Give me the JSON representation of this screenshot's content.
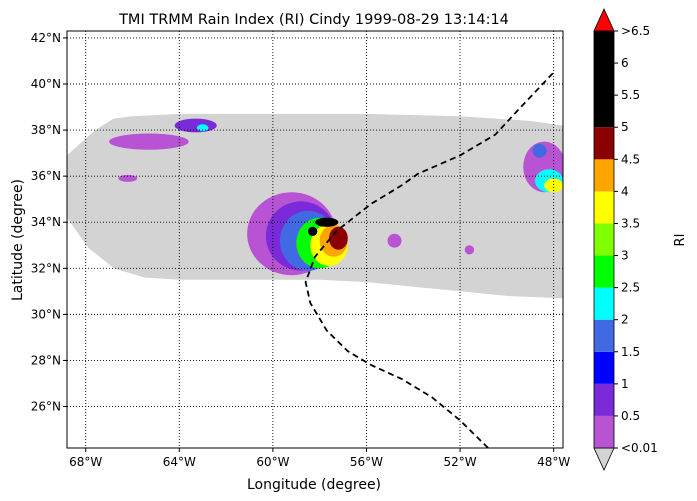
{
  "chart_data": {
    "type": "heatmap",
    "title": "TMI TRMM Rain Index (RI) Cindy 1999-08-29 13:14:14",
    "xlabel": "Longitude (degree)",
    "ylabel": "Latitude (degree)",
    "xlim": [
      -68.8,
      -47.6
    ],
    "ylim": [
      24.2,
      42.3
    ],
    "x_ticks": [
      {
        "value": -68,
        "label": "68°W"
      },
      {
        "value": -64,
        "label": "64°W"
      },
      {
        "value": -60,
        "label": "60°W"
      },
      {
        "value": -56,
        "label": "56°W"
      },
      {
        "value": -52,
        "label": "52°W"
      },
      {
        "value": -48,
        "label": "48°W"
      }
    ],
    "y_ticks": [
      {
        "value": 26,
        "label": "26°N"
      },
      {
        "value": 28,
        "label": "28°N"
      },
      {
        "value": 30,
        "label": "30°N"
      },
      {
        "value": 32,
        "label": "32°N"
      },
      {
        "value": 34,
        "label": "34°N"
      },
      {
        "value": 36,
        "label": "36°N"
      },
      {
        "value": 38,
        "label": "38°N"
      },
      {
        "value": 40,
        "label": "40°N"
      },
      {
        "value": 42,
        "label": "42°N"
      }
    ],
    "grid": "dotted",
    "swath_color": "#d3d3d3",
    "swath_outline": [
      [
        -68.8,
        36.9
      ],
      [
        -67.6,
        38.0
      ],
      [
        -66.8,
        38.5
      ],
      [
        -66.0,
        38.6
      ],
      [
        -64.0,
        38.7
      ],
      [
        -60.0,
        38.7
      ],
      [
        -56.0,
        38.7
      ],
      [
        -52.0,
        38.6
      ],
      [
        -49.0,
        38.4
      ],
      [
        -47.6,
        38.2
      ],
      [
        -47.6,
        30.7
      ],
      [
        -50.0,
        30.8
      ],
      [
        -52.0,
        31.0
      ],
      [
        -54.0,
        31.2
      ],
      [
        -56.0,
        31.4
      ],
      [
        -58.0,
        31.5
      ],
      [
        -60.0,
        31.5
      ],
      [
        -62.0,
        31.5
      ],
      [
        -64.0,
        31.5
      ],
      [
        -65.5,
        31.6
      ],
      [
        -66.8,
        32.0
      ],
      [
        -67.9,
        32.9
      ],
      [
        -68.8,
        34.2
      ]
    ],
    "track": [
      [
        -50.8,
        24.2
      ],
      [
        -52.0,
        25.4
      ],
      [
        -53.2,
        26.4
      ],
      [
        -54.5,
        27.2
      ],
      [
        -55.8,
        27.8
      ],
      [
        -56.8,
        28.4
      ],
      [
        -57.7,
        29.3
      ],
      [
        -58.4,
        30.5
      ],
      [
        -58.6,
        31.4
      ],
      [
        -58.2,
        32.5
      ],
      [
        -57.3,
        33.6
      ],
      [
        -55.8,
        34.8
      ],
      [
        -54.5,
        35.6
      ],
      [
        -53.8,
        36.1
      ],
      [
        -52.0,
        36.9
      ],
      [
        -50.5,
        37.8
      ],
      [
        -49.4,
        39.0
      ],
      [
        -48.0,
        40.5
      ]
    ],
    "rain_cells": [
      {
        "lon": -59.2,
        "lat": 33.5,
        "rx": 1.9,
        "ry": 1.8,
        "level": 0
      },
      {
        "lon": -58.8,
        "lat": 33.4,
        "rx": 1.5,
        "ry": 1.5,
        "level": 1
      },
      {
        "lon": -58.5,
        "lat": 33.2,
        "rx": 1.2,
        "ry": 1.3,
        "level": 3
      },
      {
        "lon": -58.0,
        "lat": 33.1,
        "rx": 1.0,
        "ry": 1.1,
        "level": 5
      },
      {
        "lon": -57.6,
        "lat": 33.0,
        "rx": 0.8,
        "ry": 0.9,
        "level": 7
      },
      {
        "lon": -57.4,
        "lat": 33.2,
        "rx": 0.6,
        "ry": 0.7,
        "level": 8
      },
      {
        "lon": -57.2,
        "lat": 33.3,
        "rx": 0.4,
        "ry": 0.5,
        "level": 9
      },
      {
        "lon": -57.7,
        "lat": 34.0,
        "rx": 0.5,
        "ry": 0.2,
        "level": 10
      },
      {
        "lon": -58.3,
        "lat": 33.6,
        "rx": 0.2,
        "ry": 0.2,
        "level": 11
      },
      {
        "lon": -65.3,
        "lat": 37.5,
        "rx": 1.7,
        "ry": 0.35,
        "level": 0
      },
      {
        "lon": -63.3,
        "lat": 38.2,
        "rx": 0.9,
        "ry": 0.3,
        "level": 1
      },
      {
        "lon": -63.0,
        "lat": 38.1,
        "rx": 0.25,
        "ry": 0.15,
        "level": 4
      },
      {
        "lon": -48.4,
        "lat": 36.4,
        "rx": 0.9,
        "ry": 1.1,
        "level": 0
      },
      {
        "lon": -48.2,
        "lat": 35.8,
        "rx": 0.6,
        "ry": 0.5,
        "level": 4
      },
      {
        "lon": -48.0,
        "lat": 35.6,
        "rx": 0.4,
        "ry": 0.3,
        "level": 7
      },
      {
        "lon": -48.6,
        "lat": 37.1,
        "rx": 0.3,
        "ry": 0.3,
        "level": 3
      },
      {
        "lon": -66.2,
        "lat": 35.9,
        "rx": 0.4,
        "ry": 0.15,
        "level": 0
      },
      {
        "lon": -54.8,
        "lat": 33.2,
        "rx": 0.3,
        "ry": 0.3,
        "level": 0
      },
      {
        "lon": -51.6,
        "lat": 32.8,
        "rx": 0.2,
        "ry": 0.2,
        "level": 0
      }
    ],
    "colorbar": {
      "label": "RI",
      "colors": [
        "#b854d4",
        "#7a2ad8",
        "#0000ff",
        "#4169e1",
        "#00ffff",
        "#00ff00",
        "#7fff00",
        "#ffff00",
        "#ffa500",
        "#8b0000",
        "#000000"
      ],
      "tick_labels": [
        "<0.01",
        "0.5",
        "1",
        "1.5",
        "2",
        "2.5",
        "3",
        "3.5",
        "4",
        "4.5",
        "5",
        "5.5",
        "6",
        ">6.5"
      ],
      "over_color": "#ff0000",
      "under_color": "#d3d3d3"
    }
  }
}
